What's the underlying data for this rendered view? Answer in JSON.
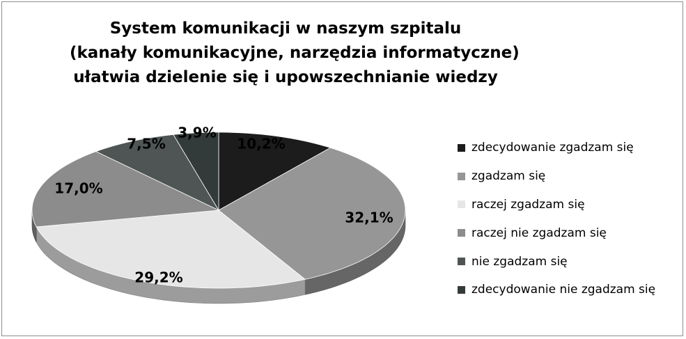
{
  "chart_data": {
    "type": "pie",
    "title_lines": [
      "System komunikacji w naszym szpitalu",
      "(kanały komunikacyjne, narzędzia informatyczne)",
      "ułatwia dzielenie się i upowszechnianie wiedzy"
    ],
    "legend_position": "right",
    "three_d": true,
    "slices": [
      {
        "label": "zdecydowanie zgadzam się",
        "value": 10.2,
        "value_label": "10,2%",
        "color": "#1c1c1c"
      },
      {
        "label": "zgadzam się",
        "value": 32.1,
        "value_label": "32,1%",
        "color": "#969696"
      },
      {
        "label": "raczej zgadzam się",
        "value": 29.2,
        "value_label": "29,2%",
        "color": "#e6e6e6"
      },
      {
        "label": "raczej nie zgadzam się",
        "value": 17.0,
        "value_label": "17,0%",
        "color": "#8c8c8c"
      },
      {
        "label": "nie zgadzam się",
        "value": 7.5,
        "value_label": "7,5%",
        "color": "#4f5555"
      },
      {
        "label": "zdecydowanie nie zgadzam się",
        "value": 3.9,
        "value_label": "3,9%",
        "color": "#333a3a"
      }
    ]
  }
}
